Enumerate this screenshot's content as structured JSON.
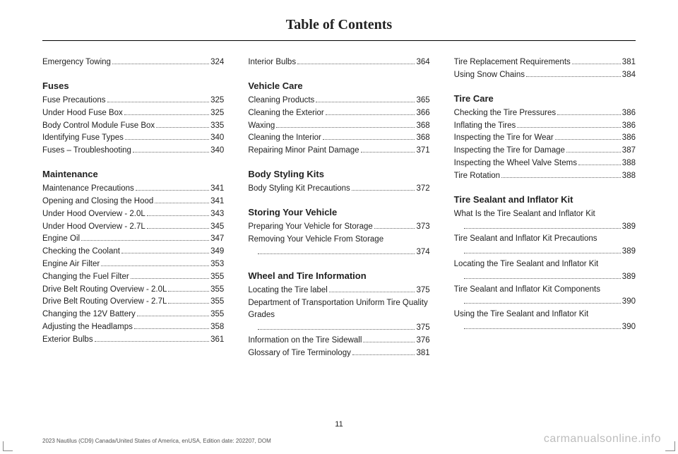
{
  "title": "Table of Contents",
  "page_number": "11",
  "footer_left": "2023 Nautilus (CD9) Canada/United States of America, enUSA, Edition date: 202207, DOM",
  "footer_right": "carmanualsonline.info",
  "columns": [
    {
      "blocks": [
        {
          "type": "entry",
          "label": "Emergency Towing",
          "page": "324"
        },
        {
          "type": "head",
          "label": "Fuses"
        },
        {
          "type": "entry",
          "label": "Fuse Precautions",
          "page": "325"
        },
        {
          "type": "entry",
          "label": "Under Hood Fuse Box",
          "page": "325"
        },
        {
          "type": "entry",
          "label": "Body Control Module Fuse Box",
          "page": "335"
        },
        {
          "type": "entry",
          "label": "Identifying Fuse Types",
          "page": "340"
        },
        {
          "type": "entry",
          "label": "Fuses – Troubleshooting",
          "page": "340"
        },
        {
          "type": "head",
          "label": "Maintenance"
        },
        {
          "type": "entry",
          "label": "Maintenance Precautions",
          "page": "341"
        },
        {
          "type": "entry",
          "label": "Opening and Closing the Hood",
          "page": "341"
        },
        {
          "type": "entry",
          "label": "Under Hood Overview - 2.0L",
          "page": "343"
        },
        {
          "type": "entry",
          "label": "Under Hood Overview - 2.7L",
          "page": "345"
        },
        {
          "type": "entry",
          "label": "Engine Oil",
          "page": "347"
        },
        {
          "type": "entry",
          "label": "Checking the Coolant",
          "page": "349"
        },
        {
          "type": "entry",
          "label": "Engine Air Filter",
          "page": "353"
        },
        {
          "type": "entry",
          "label": "Changing the Fuel Filter",
          "page": "355"
        },
        {
          "type": "entry",
          "label": "Drive Belt Routing Overview - 2.0L",
          "page": "355"
        },
        {
          "type": "entry",
          "label": "Drive Belt Routing Overview - 2.7L",
          "page": "355"
        },
        {
          "type": "entry",
          "label": "Changing the 12V Battery",
          "page": "355"
        },
        {
          "type": "entry",
          "label": "Adjusting the Headlamps",
          "page": "358"
        },
        {
          "type": "entry",
          "label": "Exterior Bulbs",
          "page": "361"
        }
      ]
    },
    {
      "blocks": [
        {
          "type": "entry",
          "label": "Interior Bulbs",
          "page": "364"
        },
        {
          "type": "head",
          "label": "Vehicle Care"
        },
        {
          "type": "entry",
          "label": "Cleaning Products",
          "page": "365"
        },
        {
          "type": "entry",
          "label": "Cleaning the Exterior",
          "page": "366"
        },
        {
          "type": "entry",
          "label": "Waxing",
          "page": "368"
        },
        {
          "type": "entry",
          "label": "Cleaning the Interior",
          "page": "368"
        },
        {
          "type": "entry",
          "label": "Repairing Minor Paint Damage",
          "page": "371"
        },
        {
          "type": "head",
          "label": "Body Styling Kits"
        },
        {
          "type": "entry",
          "label": "Body Styling Kit Precautions",
          "page": "372"
        },
        {
          "type": "head",
          "label": "Storing Your Vehicle"
        },
        {
          "type": "entry",
          "label": "Preparing Your Vehicle for Storage",
          "page": "373"
        },
        {
          "type": "entry2",
          "label": "Removing Your Vehicle From Storage",
          "page": "374"
        },
        {
          "type": "head",
          "label": "Wheel and Tire Information"
        },
        {
          "type": "entry",
          "label": "Locating the Tire label",
          "page": "375"
        },
        {
          "type": "entry2",
          "label": "Department of Transportation Uniform Tire Quality Grades",
          "cont": "Quality Grades",
          "page": "375"
        },
        {
          "type": "entry",
          "label": "Information on the Tire Sidewall",
          "page": "376"
        },
        {
          "type": "entry",
          "label": "Glossary of Tire Terminology",
          "page": "381"
        }
      ]
    },
    {
      "blocks": [
        {
          "type": "entry",
          "label": "Tire Replacement Requirements",
          "page": "381"
        },
        {
          "type": "entry",
          "label": "Using Snow Chains",
          "page": "384"
        },
        {
          "type": "head",
          "label": "Tire Care"
        },
        {
          "type": "entry",
          "label": "Checking the Tire Pressures",
          "page": "386"
        },
        {
          "type": "entry",
          "label": "Inflating the Tires",
          "page": "386"
        },
        {
          "type": "entry",
          "label": "Inspecting the Tire for Wear",
          "page": "386"
        },
        {
          "type": "entry",
          "label": "Inspecting the Tire for Damage",
          "page": "387"
        },
        {
          "type": "entry",
          "label": "Inspecting the Wheel Valve Stems",
          "page": "388"
        },
        {
          "type": "entry",
          "label": "Tire Rotation",
          "page": "388"
        },
        {
          "type": "head",
          "label": "Tire Sealant and Inflator Kit"
        },
        {
          "type": "entry2",
          "label": "What Is the Tire Sealant and Inflator Kit",
          "page": "389"
        },
        {
          "type": "entry2",
          "label": "Tire Sealant and Inflator Kit Precautions",
          "page": "389"
        },
        {
          "type": "entry2",
          "label": "Locating the Tire Sealant and Inflator Kit",
          "page": "389"
        },
        {
          "type": "entry2",
          "label": "Tire Sealant and Inflator Kit Components",
          "page": "390"
        },
        {
          "type": "entry2",
          "label": "Using the Tire Sealant and Inflator Kit",
          "page": "390"
        }
      ]
    }
  ]
}
